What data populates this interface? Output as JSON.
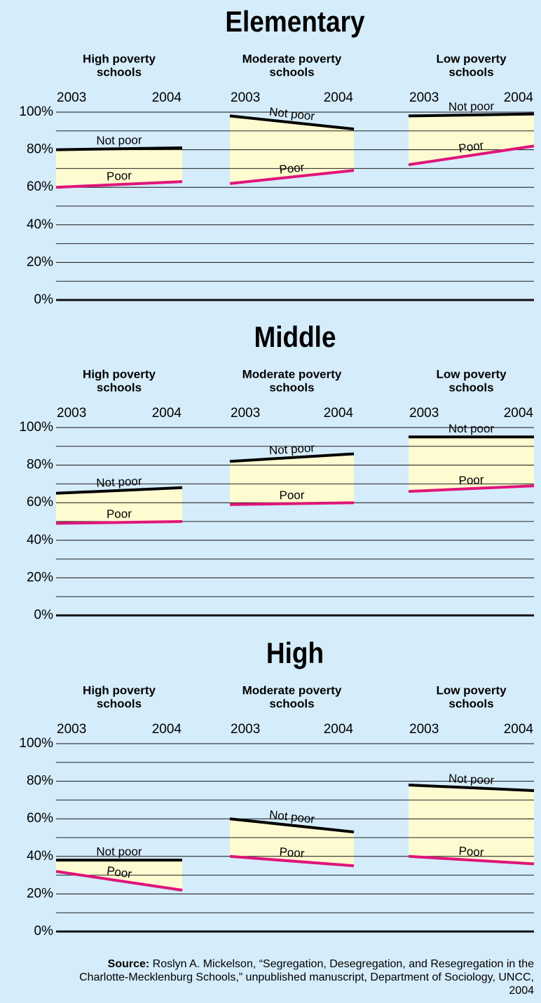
{
  "chart_data": [
    {
      "type": "line",
      "title": "Elementary",
      "ylim": [
        0,
        100
      ],
      "yticks": [
        {
          "value": 0,
          "label": "0%"
        },
        {
          "value": 20,
          "label": "20%"
        },
        {
          "value": 40,
          "label": "40%"
        },
        {
          "value": 60,
          "label": "60%"
        },
        {
          "value": 80,
          "label": "80%"
        },
        {
          "value": 100,
          "label": "100%"
        }
      ],
      "minor_yticks": [
        10,
        30,
        50,
        70,
        90
      ],
      "grid": true,
      "fill": "#fffbd0",
      "panels": [
        {
          "title": [
            "High poverty",
            "schools"
          ],
          "x": [
            2003,
            2004
          ],
          "xlim": [
            2003,
            2004
          ],
          "series": [
            {
              "name": "Not poor",
              "color": "#000000",
              "values": [
                80,
                81
              ]
            },
            {
              "name": "Poor",
              "color": "#e0157a",
              "values": [
                60,
                63
              ]
            }
          ]
        },
        {
          "title": [
            "Moderate poverty",
            "schools"
          ],
          "x": [
            2003,
            2004
          ],
          "xlim": [
            2003,
            2004
          ],
          "series": [
            {
              "name": "Not poor",
              "color": "#000000",
              "values": [
                98,
                91
              ]
            },
            {
              "name": "Poor",
              "color": "#e0157a",
              "values": [
                62,
                69
              ]
            }
          ]
        },
        {
          "title": [
            "Low poverty",
            "schools"
          ],
          "x": [
            2003,
            2004
          ],
          "xlim": [
            2003,
            2004
          ],
          "series": [
            {
              "name": "Not poor",
              "color": "#000000",
              "values": [
                98,
                99
              ]
            },
            {
              "name": "Poor",
              "color": "#e0157a",
              "values": [
                72,
                82
              ]
            }
          ]
        }
      ]
    },
    {
      "type": "line",
      "title": "Middle",
      "ylim": [
        0,
        100
      ],
      "yticks": [
        {
          "value": 0,
          "label": "0%"
        },
        {
          "value": 20,
          "label": "20%"
        },
        {
          "value": 40,
          "label": "40%"
        },
        {
          "value": 60,
          "label": "60%"
        },
        {
          "value": 80,
          "label": "80%"
        },
        {
          "value": 100,
          "label": "100%"
        }
      ],
      "minor_yticks": [
        10,
        30,
        50,
        70,
        90
      ],
      "grid": true,
      "fill": "#fffbd0",
      "panels": [
        {
          "title": [
            "High poverty",
            "schools"
          ],
          "x": [
            2003,
            2004
          ],
          "xlim": [
            2003,
            2004
          ],
          "series": [
            {
              "name": "Not poor",
              "color": "#000000",
              "values": [
                65,
                68
              ]
            },
            {
              "name": "Poor",
              "color": "#e0157a",
              "values": [
                49,
                50
              ]
            }
          ]
        },
        {
          "title": [
            "Moderate poverty",
            "schools"
          ],
          "x": [
            2003,
            2004
          ],
          "xlim": [
            2003,
            2004
          ],
          "series": [
            {
              "name": "Not poor",
              "color": "#000000",
              "values": [
                82,
                86
              ]
            },
            {
              "name": "Poor",
              "color": "#e0157a",
              "values": [
                59,
                60
              ]
            }
          ]
        },
        {
          "title": [
            "Low poverty",
            "schools"
          ],
          "x": [
            2003,
            2004
          ],
          "xlim": [
            2003,
            2004
          ],
          "series": [
            {
              "name": "Not poor",
              "color": "#000000",
              "values": [
                95,
                95
              ]
            },
            {
              "name": "Poor",
              "color": "#e0157a",
              "values": [
                66,
                69
              ]
            }
          ]
        }
      ]
    },
    {
      "type": "line",
      "title": "High",
      "ylim": [
        0,
        100
      ],
      "yticks": [
        {
          "value": 0,
          "label": "0%"
        },
        {
          "value": 20,
          "label": "20%"
        },
        {
          "value": 40,
          "label": "40%"
        },
        {
          "value": 60,
          "label": "60%"
        },
        {
          "value": 80,
          "label": "80%"
        },
        {
          "value": 100,
          "label": "100%"
        }
      ],
      "minor_yticks": [
        10,
        30,
        50,
        70,
        90
      ],
      "grid": true,
      "fill": "#fffbd0",
      "panels": [
        {
          "title": [
            "High poverty",
            "schools"
          ],
          "x": [
            2003,
            2004
          ],
          "xlim": [
            2003,
            2004
          ],
          "series": [
            {
              "name": "Not poor",
              "color": "#000000",
              "values": [
                38,
                38
              ]
            },
            {
              "name": "Poor",
              "color": "#e0157a",
              "values": [
                32,
                22
              ]
            }
          ]
        },
        {
          "title": [
            "Moderate poverty",
            "schools"
          ],
          "x": [
            2003,
            2004
          ],
          "xlim": [
            2003,
            2004
          ],
          "series": [
            {
              "name": "Not poor",
              "color": "#000000",
              "values": [
                60,
                53
              ]
            },
            {
              "name": "Poor",
              "color": "#e0157a",
              "values": [
                40,
                35
              ]
            }
          ]
        },
        {
          "title": [
            "Low poverty",
            "schools"
          ],
          "x": [
            2003,
            2004
          ],
          "xlim": [
            2003,
            2004
          ],
          "series": [
            {
              "name": "Not poor",
              "color": "#000000",
              "values": [
                78,
                75
              ]
            },
            {
              "name": "Poor",
              "color": "#e0157a",
              "values": [
                40,
                36
              ]
            }
          ]
        }
      ]
    }
  ],
  "source": {
    "label": "Source:",
    "text": "Roslyn A. Mickelson, “Segregation, Desegregation, and Resegregation in the Charlotte-Mecklenburg Schools,”  unpublished manuscript, Department of Sociology, UNCC, 2004"
  }
}
